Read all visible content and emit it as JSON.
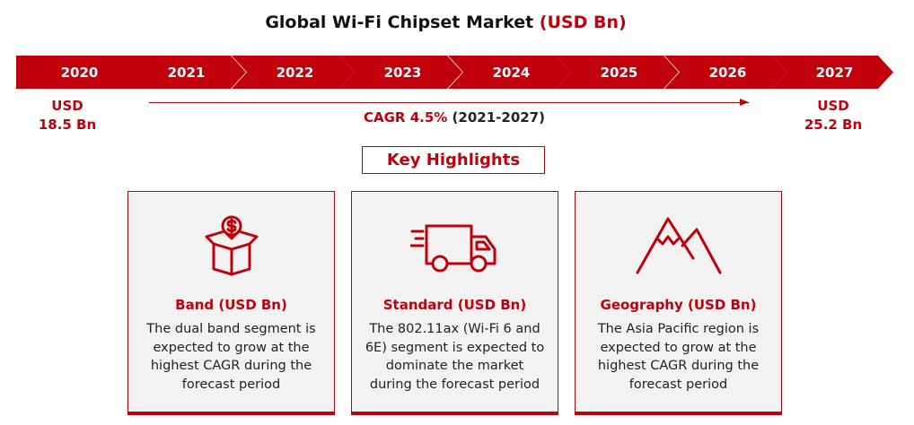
{
  "title": {
    "main": "Global Wi-Fi Chipset Market",
    "unit": "(USD Bn)"
  },
  "timeline": {
    "years": [
      "2020",
      "2021",
      "2022",
      "2023",
      "2024",
      "2025",
      "2026",
      "2027"
    ],
    "start": {
      "line1": "USD",
      "line2": "18.5 Bn"
    },
    "end": {
      "line1": "USD",
      "line2": "25.2 Bn"
    },
    "cagr_value": "CAGR 4.5%",
    "cagr_period": "(2021-2027)"
  },
  "key_highlights": "Key Highlights",
  "cards": [
    {
      "icon": "money-box-icon",
      "title": "Band (USD Bn)",
      "text": "The dual band segment is expected to grow at the highest CAGR during the forecast period"
    },
    {
      "icon": "delivery-truck-icon",
      "title": "Standard (USD Bn)",
      "text": "The 802.11ax (Wi-Fi 6 and 6E) segment is expected to dominate the market during the forecast period"
    },
    {
      "icon": "mountain-icon",
      "title": "Geography (USD Bn)",
      "text": "The Asia Pacific region is expected to grow at the highest CAGR during the forecast period"
    }
  ],
  "colors": {
    "accent": "#c0000b",
    "card_background": "#f2f2f2"
  }
}
